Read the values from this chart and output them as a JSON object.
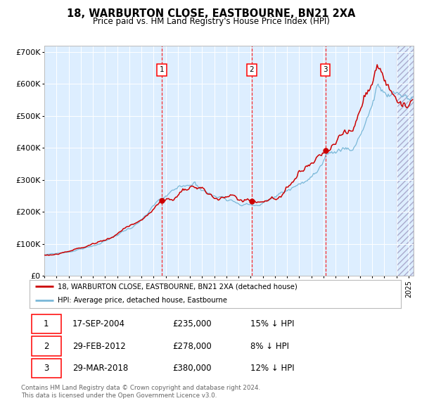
{
  "title": "18, WARBURTON CLOSE, EASTBOURNE, BN21 2XA",
  "subtitle": "Price paid vs. HM Land Registry's House Price Index (HPI)",
  "hpi_color": "#7ab8d8",
  "price_color": "#cc0000",
  "bg_color": "#ddeeff",
  "grid_color": "#ffffff",
  "sale_dates_str": [
    "2004-09-01",
    "2012-02-01",
    "2018-03-01"
  ],
  "sale_prices": [
    235000,
    278000,
    380000
  ],
  "sale_labels": [
    "1",
    "2",
    "3"
  ],
  "sale_info": [
    [
      "1",
      "17-SEP-2004",
      "£235,000",
      "15% ↓ HPI"
    ],
    [
      "2",
      "29-FEB-2012",
      "£278,000",
      "8% ↓ HPI"
    ],
    [
      "3",
      "29-MAR-2018",
      "£380,000",
      "12% ↓ HPI"
    ]
  ],
  "legend_entry_red": "18, WARBURTON CLOSE, EASTBOURNE, BN21 2XA (detached house)",
  "legend_entry_blue": "HPI: Average price, detached house, Eastbourne",
  "footer_line1": "Contains HM Land Registry data © Crown copyright and database right 2024.",
  "footer_line2": "This data is licensed under the Open Government Licence v3.0.",
  "ytick_labels": [
    "£0",
    "£100K",
    "£200K",
    "£300K",
    "£400K",
    "£500K",
    "£600K",
    "£700K"
  ],
  "ytick_values": [
    0,
    100000,
    200000,
    300000,
    400000,
    500000,
    600000,
    700000
  ],
  "ylim_max": 720000,
  "x_start": "1995-01-01",
  "x_end": "2025-06-01"
}
